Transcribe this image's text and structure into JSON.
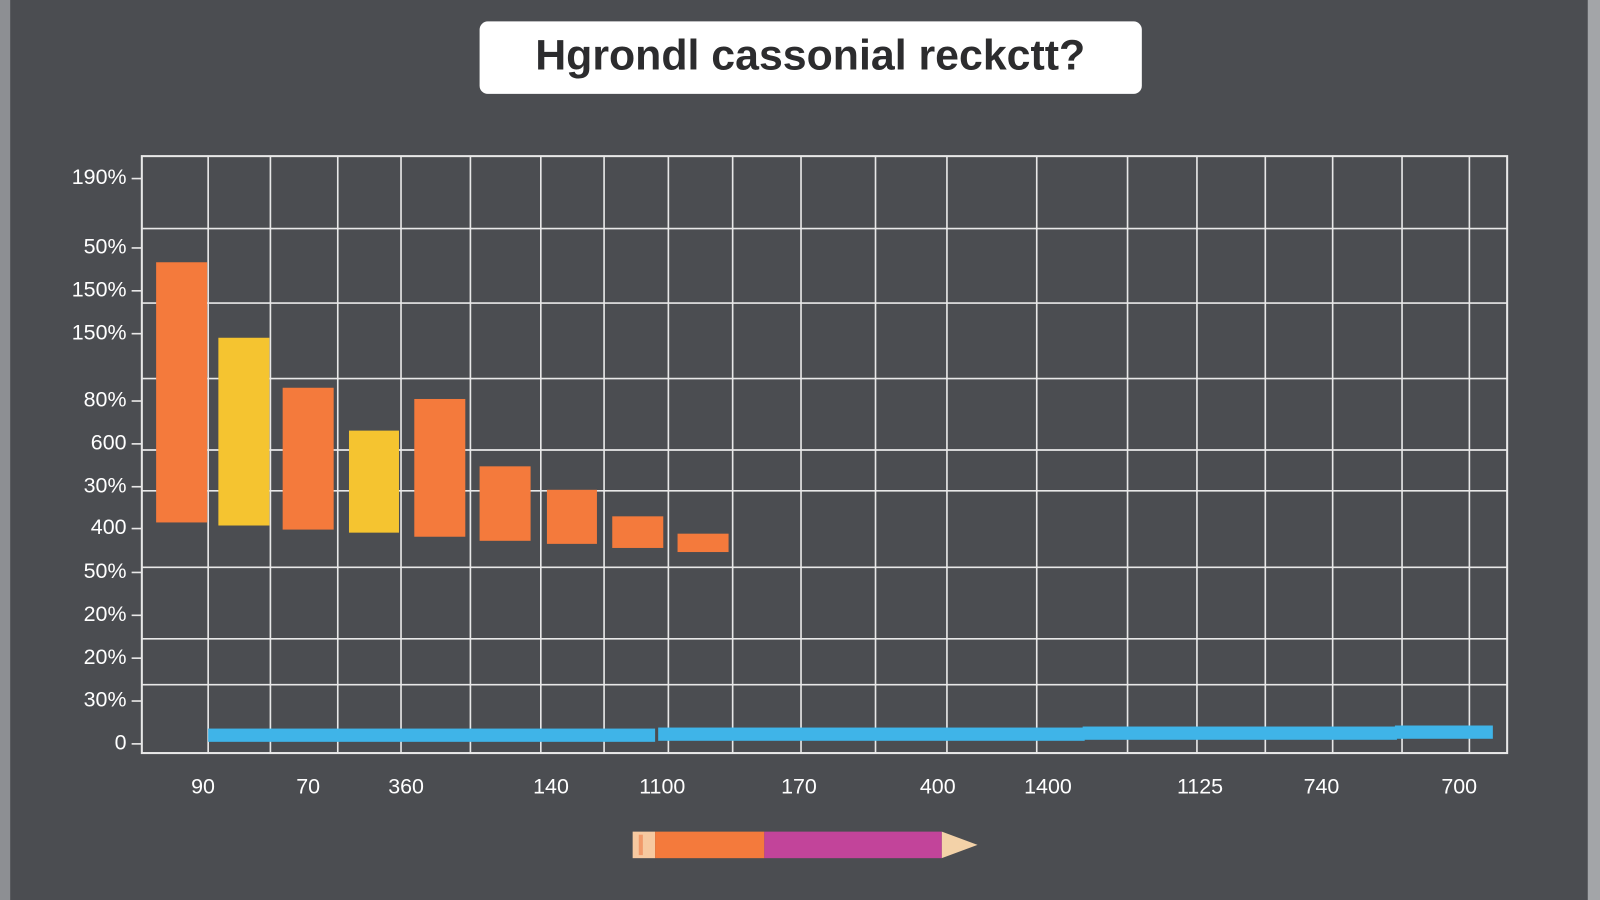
{
  "title": "Hgrondl cassonial reckctt?",
  "y_axis": {
    "labels": [
      "190%",
      "50%",
      "150%",
      "150%",
      "80%",
      "600",
      "30%",
      "400",
      "50%",
      "20%",
      "20%",
      "30%",
      "0"
    ]
  },
  "x_axis": {
    "labels": [
      "90",
      "70",
      "360",
      "140",
      "1100",
      "170",
      "400",
      "1400",
      "1125",
      "740",
      "700"
    ]
  }
}
